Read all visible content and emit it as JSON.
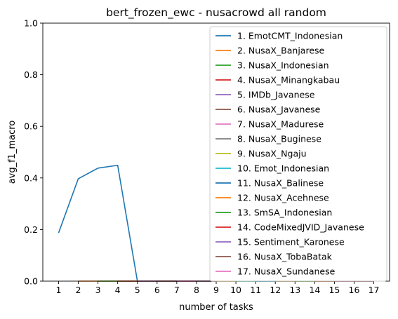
{
  "chart_data": {
    "type": "line",
    "title": "bert_frozen_ewc - nusacrowd all random",
    "xlabel": "number of tasks",
    "ylabel": "avg_f1_macro",
    "xlim": [
      0.2,
      17.8
    ],
    "ylim": [
      0,
      1.0
    ],
    "x_ticks": [
      1,
      2,
      3,
      4,
      5,
      6,
      7,
      8,
      9,
      10,
      11,
      12,
      13,
      14,
      15,
      16,
      17
    ],
    "y_ticks": [
      0.0,
      0.2,
      0.4,
      0.6,
      0.8,
      1.0
    ],
    "y_tick_labels": [
      "0.0",
      "0.2",
      "0.4",
      "0.6",
      "0.8",
      "1.0"
    ],
    "grid": false,
    "legend_position": "top-right",
    "series": [
      {
        "name": "1. EmotCMT_Indonesian",
        "color": "#1f77b4",
        "x": [
          1,
          2,
          3,
          4,
          5,
          6,
          7,
          8,
          9,
          10,
          11,
          12,
          13,
          14,
          15,
          16,
          17
        ],
        "values": [
          0.187,
          0.397,
          0.438,
          0.449,
          0,
          0,
          0,
          0,
          0,
          0,
          0,
          0,
          0,
          0,
          0,
          0,
          0
        ]
      },
      {
        "name": "2. NusaX_Banjarese",
        "color": "#ff7f0e",
        "x": [
          2,
          3,
          4,
          5,
          6,
          7,
          8,
          9,
          10,
          11,
          12,
          13,
          14,
          15,
          16,
          17
        ],
        "values": [
          0,
          0,
          0,
          0,
          0,
          0,
          0,
          0,
          0,
          0,
          0,
          0,
          0,
          0,
          0,
          0
        ]
      },
      {
        "name": "3. NusaX_Indonesian",
        "color": "#2ca02c",
        "x": [
          3,
          4,
          5,
          6,
          7,
          8,
          9,
          10,
          11,
          12,
          13,
          14,
          15,
          16,
          17
        ],
        "values": [
          0,
          0,
          0,
          0,
          0,
          0,
          0,
          0,
          0,
          0,
          0,
          0,
          0,
          0,
          0
        ]
      },
      {
        "name": "4. NusaX_Minangkabau",
        "color": "#d62728",
        "x": [
          4,
          5,
          6,
          7,
          8,
          9,
          10,
          11,
          12,
          13,
          14,
          15,
          16,
          17
        ],
        "values": [
          0,
          0,
          0,
          0,
          0,
          0,
          0,
          0,
          0,
          0,
          0,
          0,
          0,
          0
        ]
      },
      {
        "name": "5. IMDb_Javanese",
        "color": "#9467bd",
        "x": [
          5,
          6,
          7,
          8,
          9,
          10,
          11,
          12,
          13,
          14,
          15,
          16,
          17
        ],
        "values": [
          0,
          0,
          0,
          0,
          0,
          0,
          0,
          0,
          0,
          0,
          0,
          0,
          0
        ]
      },
      {
        "name": "6. NusaX_Javanese",
        "color": "#8c564b",
        "x": [
          6,
          7,
          8,
          9,
          10,
          11,
          12,
          13,
          14,
          15,
          16,
          17
        ],
        "values": [
          0,
          0,
          0,
          0,
          0,
          0,
          0,
          0,
          0,
          0,
          0,
          0
        ]
      },
      {
        "name": "7. NusaX_Madurese",
        "color": "#e377c2",
        "x": [
          7,
          8,
          9,
          10,
          11,
          12,
          13,
          14,
          15,
          16,
          17
        ],
        "values": [
          0,
          0,
          0,
          0,
          0,
          0,
          0,
          0,
          0,
          0,
          0
        ]
      },
      {
        "name": "8. NusaX_Buginese",
        "color": "#7f7f7f",
        "x": [
          8,
          9,
          10,
          11,
          12,
          13,
          14,
          15,
          16,
          17
        ],
        "values": [
          0,
          0,
          0,
          0,
          0,
          0,
          0,
          0,
          0,
          0
        ]
      },
      {
        "name": "9. NusaX_Ngaju",
        "color": "#bcbd22",
        "x": [
          9,
          10,
          11,
          12,
          13,
          14,
          15,
          16,
          17
        ],
        "values": [
          0,
          0,
          0,
          0,
          0,
          0,
          0,
          0,
          0
        ]
      },
      {
        "name": "10. Emot_Indonesian",
        "color": "#17becf",
        "x": [
          10,
          11,
          12,
          13,
          14,
          15,
          16,
          17
        ],
        "values": [
          0,
          0,
          0,
          0,
          0,
          0,
          0,
          0
        ]
      },
      {
        "name": "11. NusaX_Balinese",
        "color": "#1f77b4",
        "x": [
          11,
          12,
          13,
          14,
          15,
          16,
          17
        ],
        "values": [
          0,
          0,
          0,
          0,
          0,
          0,
          0
        ]
      },
      {
        "name": "12. NusaX_Acehnese",
        "color": "#ff7f0e",
        "x": [
          12,
          13,
          14,
          15,
          16,
          17
        ],
        "values": [
          0,
          0,
          0,
          0,
          0,
          0
        ]
      },
      {
        "name": "13. SmSA_Indonesian",
        "color": "#2ca02c",
        "x": [
          13,
          14,
          15,
          16,
          17
        ],
        "values": [
          0,
          0,
          0,
          0,
          0
        ]
      },
      {
        "name": "14. CodeMixedJVID_Javanese",
        "color": "#d62728",
        "x": [
          14,
          15,
          16,
          17
        ],
        "values": [
          0,
          0,
          0,
          0
        ]
      },
      {
        "name": "15. Sentiment_Karonese",
        "color": "#9467bd",
        "x": [
          15,
          16,
          17
        ],
        "values": [
          0,
          0,
          0
        ]
      },
      {
        "name": "16. NusaX_TobaBatak",
        "color": "#8c564b",
        "x": [
          16,
          17
        ],
        "values": [
          0,
          0
        ]
      },
      {
        "name": "17. NusaX_Sundanese",
        "color": "#e377c2",
        "x": [
          17
        ],
        "values": [
          0
        ]
      }
    ]
  }
}
